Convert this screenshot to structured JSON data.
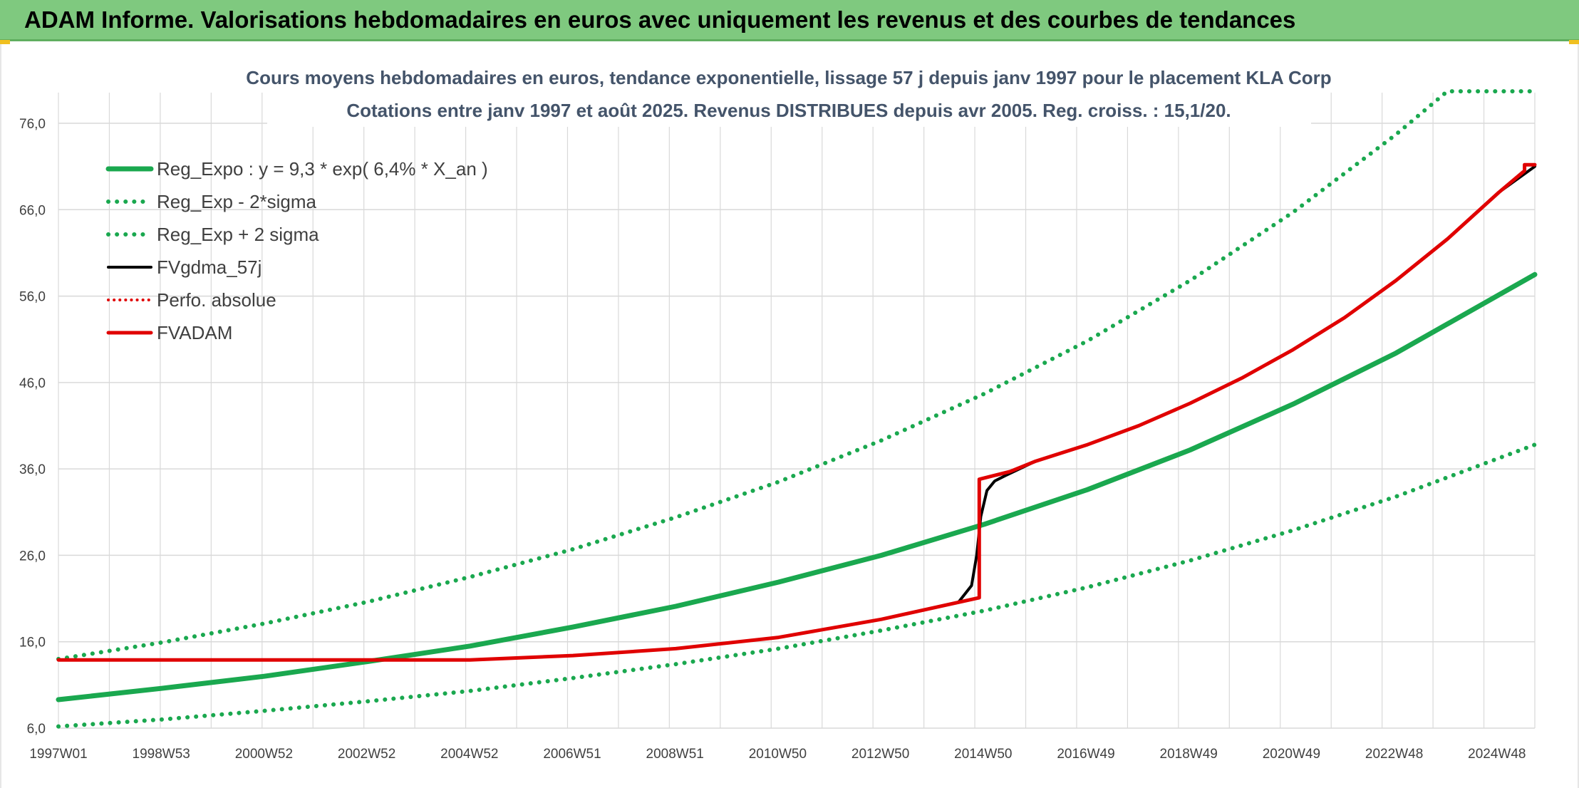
{
  "header": {
    "title": "ADAM Informe. Valorisations hebdomadaires en euros avec uniquement les revenus et des courbes de tendances"
  },
  "colors": {
    "banner": "#7fc97f",
    "trend_green": "#1aa84f",
    "adam_red": "#e00000",
    "gdma_black": "#000000",
    "grid": "#d9d9d9",
    "title_text": "#44546a",
    "axis_text": "#404040"
  },
  "chart_data": {
    "type": "line",
    "title": "Cours moyens hebdomadaires en euros, tendance exponentielle, lissage 57 j depuis janv 1997 pour le placement KLA Corp",
    "subtitle": "Cotations entre janv 1997 et août 2025. Revenus DISTRIBUES depuis avr 2005. Reg. croiss. : 15,1/20.",
    "xlabel": "",
    "ylabel": "",
    "ylim": [
      6,
      76
    ],
    "y_ticks": [
      "6,0",
      "16,0",
      "26,0",
      "36,0",
      "46,0",
      "56,0",
      "66,0",
      "76,0"
    ],
    "x_ticks": [
      "1997W01",
      "1998W53",
      "2000W52",
      "2002W52",
      "2004W52",
      "2006W51",
      "2008W51",
      "2010W50",
      "2012W50",
      "2014W50",
      "2016W49",
      "2018W49",
      "2020W49",
      "2022W48",
      "2024W48"
    ],
    "xlim": [
      1997.0,
      2025.7
    ],
    "grid": true,
    "legend_position": "top-left",
    "series": [
      {
        "name": "Reg_Expo : y = 9,3 * exp( 6,4% *  X_an )",
        "style": "solid",
        "color": "#1aa84f",
        "x": [
          1997.0,
          1999.0,
          2001.0,
          2003.0,
          2005.0,
          2007.0,
          2009.0,
          2011.0,
          2013.0,
          2015.0,
          2017.0,
          2019.0,
          2021.0,
          2023.0,
          2025.7
        ],
        "y": [
          9.3,
          10.6,
          12.0,
          13.7,
          15.5,
          17.7,
          20.1,
          22.9,
          26.0,
          29.6,
          33.6,
          38.2,
          43.5,
          49.4,
          58.5
        ]
      },
      {
        "name": "Reg_Exp - 2*sigma",
        "style": "dotted",
        "color": "#1aa84f",
        "x": [
          1997.0,
          1999.0,
          2001.0,
          2003.0,
          2005.0,
          2007.0,
          2009.0,
          2011.0,
          2013.0,
          2015.0,
          2017.0,
          2019.0,
          2021.0,
          2023.0,
          2025.7
        ],
        "y": [
          6.2,
          7.0,
          8.0,
          9.1,
          10.3,
          11.8,
          13.4,
          15.2,
          17.3,
          19.6,
          22.3,
          25.4,
          28.9,
          32.8,
          38.8
        ]
      },
      {
        "name": "Reg_Exp + 2 sigma",
        "style": "dotted",
        "color": "#1aa84f",
        "x": [
          1997.0,
          1999.0,
          2001.0,
          2003.0,
          2005.0,
          2007.0,
          2009.0,
          2011.0,
          2013.0,
          2015.0,
          2017.0,
          2019.0,
          2021.0,
          2023.0,
          2024.0,
          2025.7
        ],
        "y": [
          14.0,
          15.9,
          18.1,
          20.6,
          23.5,
          26.7,
          30.4,
          34.5,
          39.3,
          44.7,
          50.8,
          57.8,
          65.7,
          74.7,
          79.7,
          79.7
        ]
      },
      {
        "name": "FVgdma_57j",
        "style": "solid",
        "color": "#000000",
        "x": [
          1997.0,
          2005.0,
          2007.0,
          2009.0,
          2011.0,
          2013.0,
          2014.5,
          2014.75,
          2014.85,
          2014.93,
          2015.05,
          2015.2,
          2015.4,
          2016.0,
          2017.0,
          2018.0,
          2019.0,
          2020.0,
          2021.0,
          2022.0,
          2023.0,
          2024.0,
          2025.0,
          2025.7
        ],
        "y": [
          13.9,
          13.9,
          14.4,
          15.2,
          16.5,
          18.6,
          20.6,
          22.5,
          26.0,
          30.5,
          33.5,
          34.6,
          35.2,
          36.9,
          38.8,
          41.0,
          43.6,
          46.5,
          49.8,
          53.5,
          57.8,
          62.6,
          68.0,
          71.0
        ]
      },
      {
        "name": "Perfo. absolue",
        "style": "dotted",
        "color": "#e00000",
        "x": [],
        "y": []
      },
      {
        "name": "FVADAM",
        "style": "solid",
        "color": "#e00000",
        "x": [
          1997.0,
          2005.0,
          2007.0,
          2009.0,
          2011.0,
          2013.0,
          2014.9,
          2014.9,
          2015.5,
          2016.0,
          2017.0,
          2018.0,
          2019.0,
          2020.0,
          2021.0,
          2022.0,
          2023.0,
          2024.0,
          2025.0,
          2025.5,
          2025.5,
          2025.7
        ],
        "y": [
          13.9,
          13.9,
          14.4,
          15.2,
          16.5,
          18.6,
          21.1,
          34.8,
          35.7,
          36.9,
          38.8,
          41.0,
          43.6,
          46.5,
          49.8,
          53.5,
          57.8,
          62.6,
          68.0,
          70.5,
          71.2,
          71.2
        ]
      }
    ]
  }
}
